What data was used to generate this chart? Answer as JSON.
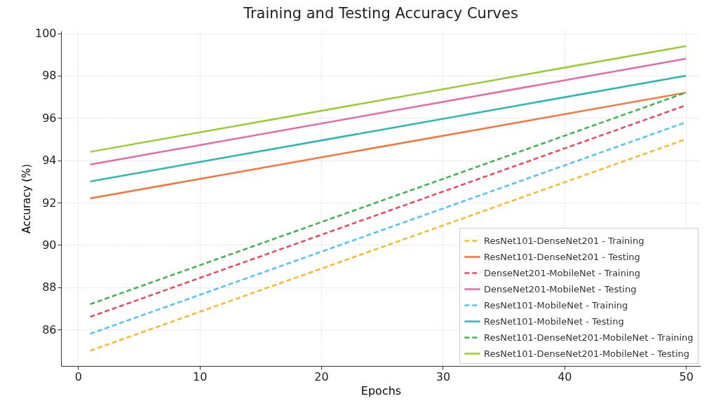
{
  "chart_data": {
    "type": "line",
    "title": "Training and Testing Accuracy Curves",
    "xlabel": "Epochs",
    "ylabel": "Accuracy (%)",
    "x": [
      1,
      50
    ],
    "xlim": [
      -1.4,
      51.2
    ],
    "xticks": [
      0,
      10,
      20,
      30,
      40,
      50
    ],
    "ylim": [
      84.28,
      100.12
    ],
    "yticks": [
      86,
      88,
      90,
      92,
      94,
      96,
      98,
      100
    ],
    "grid": true,
    "legend": "bottom right",
    "series": [
      {
        "name": "ResNet101-DenseNet201 - Training",
        "color": "#fbb829",
        "line_style": "dashed",
        "values": [
          85.0,
          95.0
        ]
      },
      {
        "name": "ResNet101-DenseNet201 - Testing",
        "color": "#f7743a",
        "line_style": "solid",
        "values": [
          92.2,
          97.2
        ]
      },
      {
        "name": "DenseNet201-MobileNet - Training",
        "color": "#f0455a",
        "line_style": "dashed",
        "values": [
          86.6,
          96.6
        ]
      },
      {
        "name": "DenseNet201-MobileNet - Testing",
        "color": "#e66aa8",
        "line_style": "solid",
        "values": [
          93.8,
          98.8
        ]
      },
      {
        "name": "ResNet101-MobileNet - Training",
        "color": "#4fc3f7",
        "line_style": "dashed",
        "values": [
          85.8,
          95.8
        ]
      },
      {
        "name": "ResNet101-MobileNet - Testing",
        "color": "#2ab7b7",
        "line_style": "solid",
        "values": [
          93.0,
          98.0
        ]
      },
      {
        "name": "ResNet101-DenseNet201-MobileNet - Training",
        "color": "#3cb54a",
        "line_style": "dashed",
        "values": [
          87.2,
          97.2
        ]
      },
      {
        "name": "ResNet101-DenseNet201-MobileNet - Testing",
        "color": "#9acd32",
        "line_style": "solid",
        "values": [
          94.4,
          99.4
        ]
      }
    ]
  }
}
